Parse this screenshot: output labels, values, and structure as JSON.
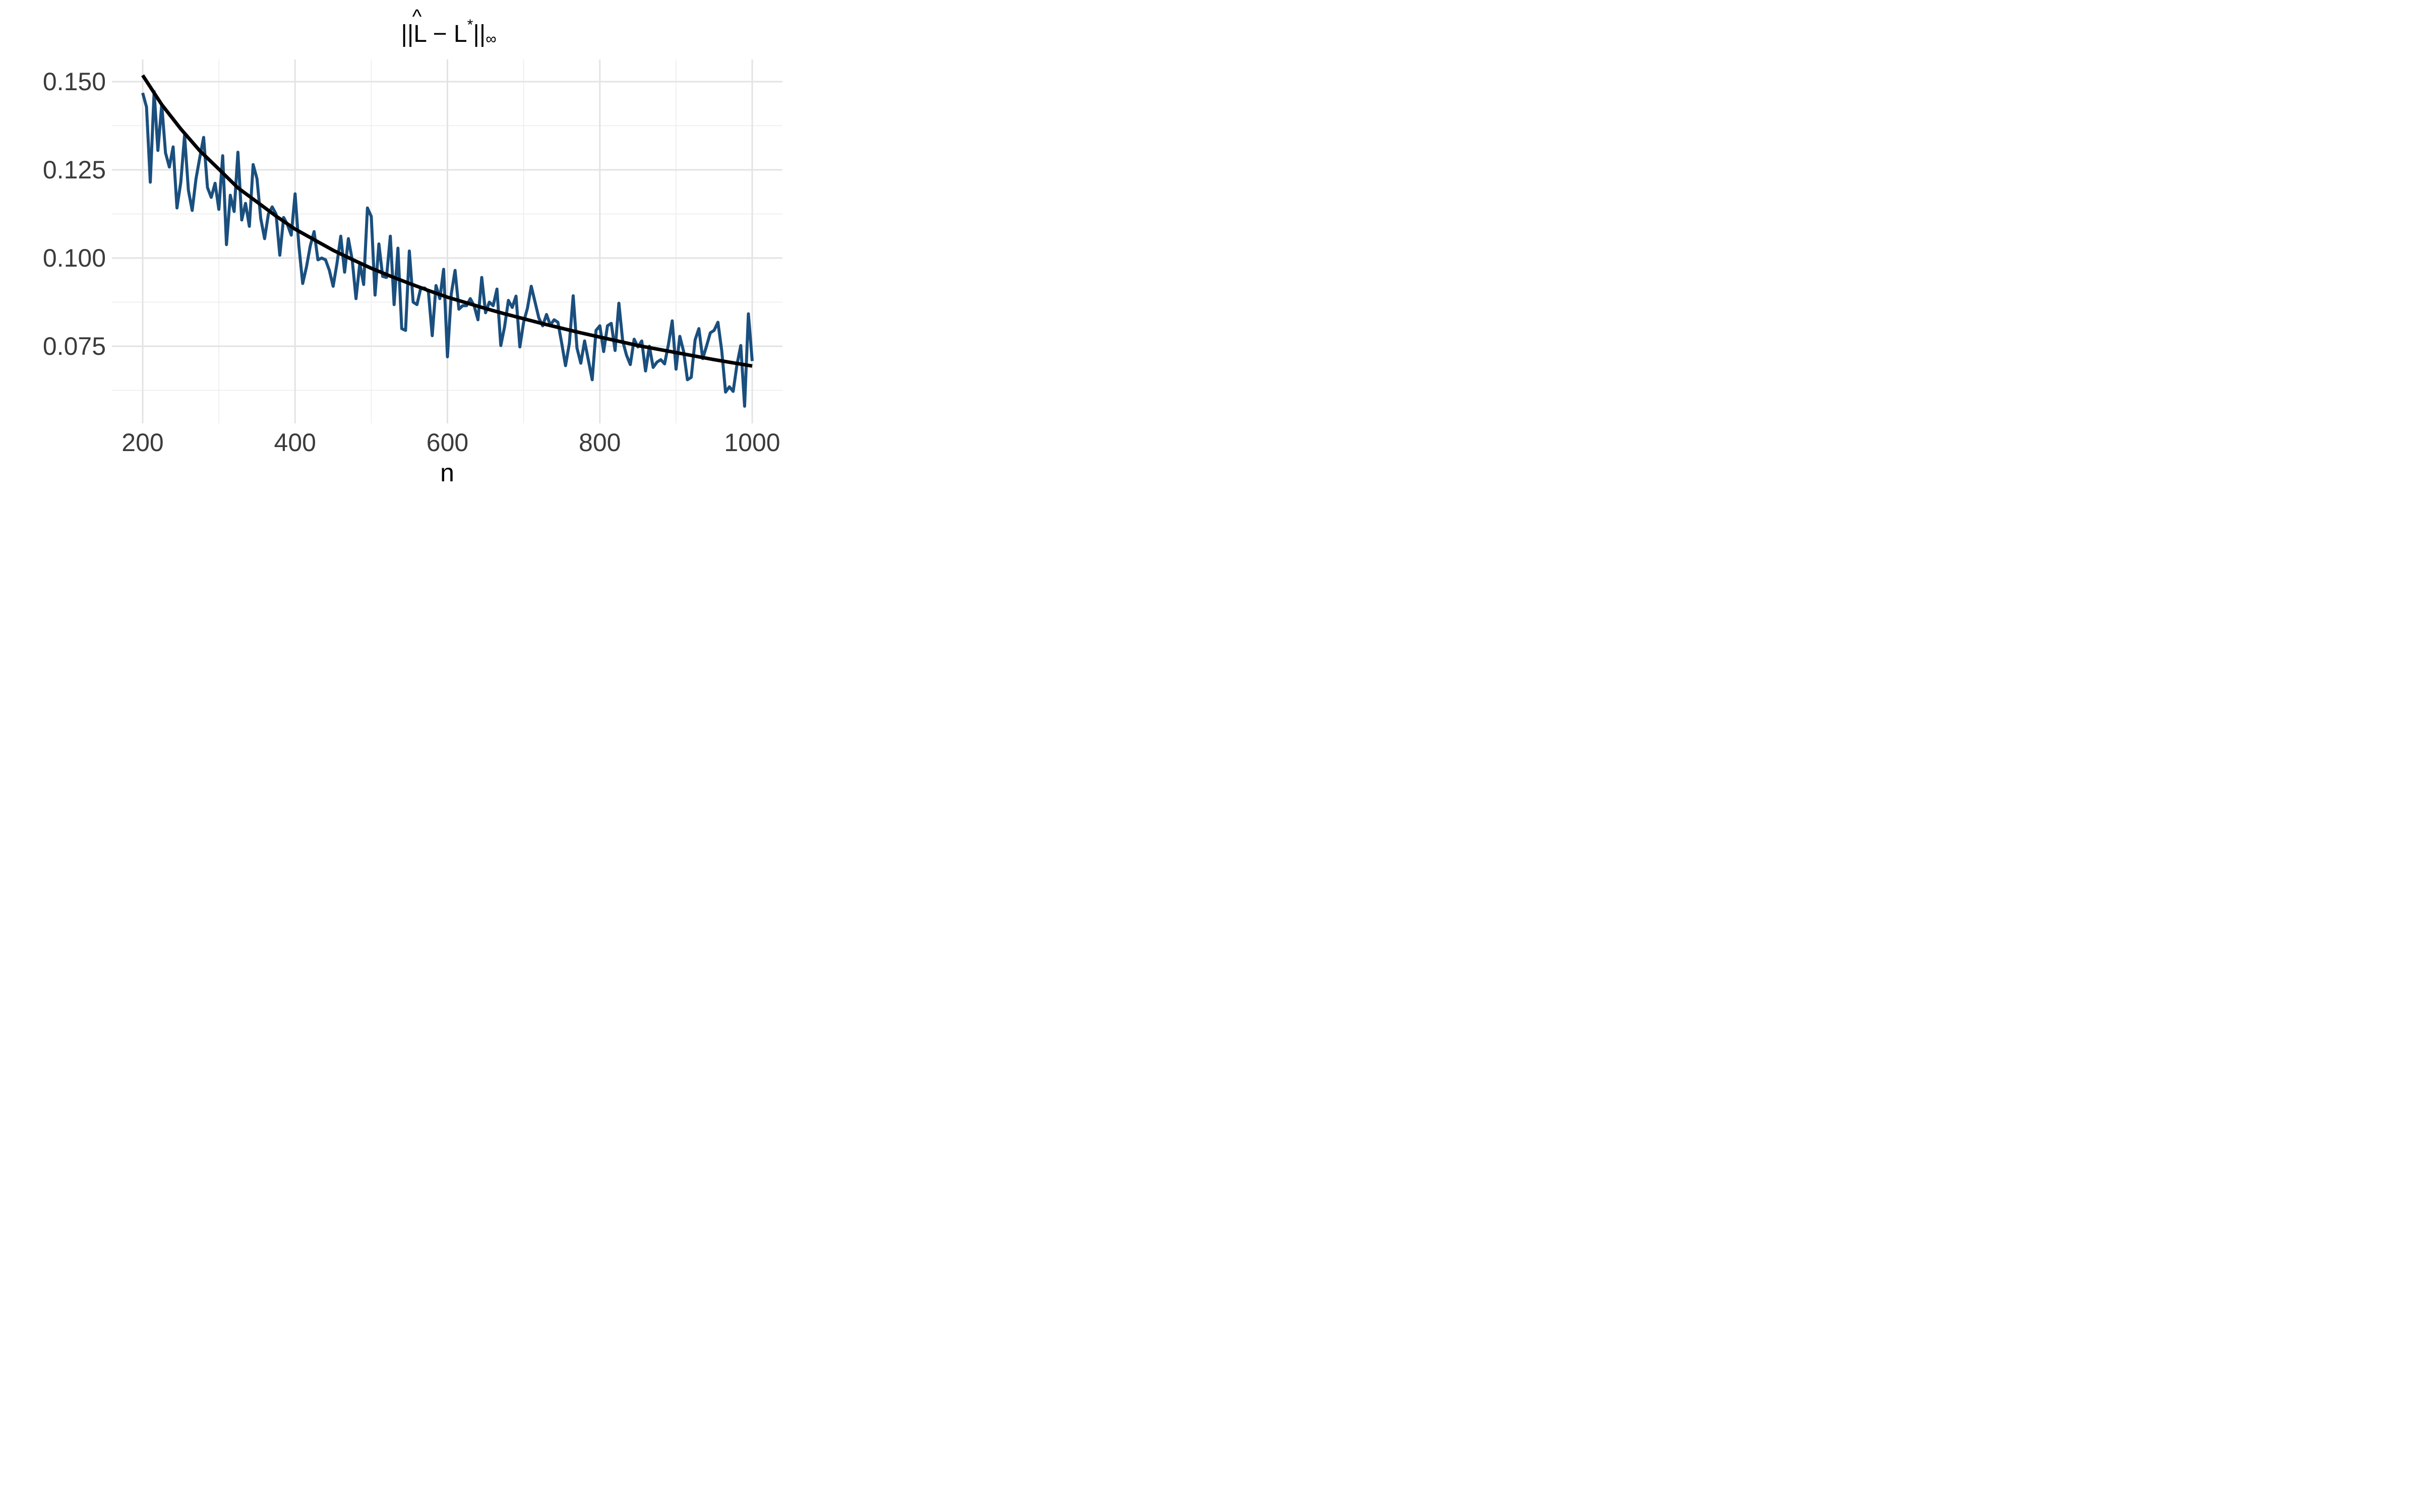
{
  "chart_data": {
    "type": "line",
    "title": {
      "bar_left": "||",
      "hat": "^",
      "L1": "L",
      "minus": " − ",
      "L2": "L",
      "star": "*",
      "bar_right": "||",
      "sub": "∞"
    },
    "xlabel": "n",
    "ylabel": "",
    "xlim": [
      200,
      1000
    ],
    "ylim": [
      0.0595,
      0.1575
    ],
    "x_ticks": [
      200,
      400,
      600,
      800,
      1000
    ],
    "x_tick_labels": [
      "200",
      "400",
      "600",
      "800",
      "1000"
    ],
    "y_ticks": [
      0.075,
      0.1,
      0.125,
      0.15
    ],
    "y_tick_labels": [
      "0.075",
      "0.100",
      "0.125",
      "0.150"
    ],
    "grid": true,
    "legend": "none",
    "series": [
      {
        "color": "#1a4f7e",
        "x": [
          200,
          205,
          210,
          215,
          220,
          225,
          230,
          235,
          240,
          245,
          250,
          255,
          260,
          265,
          270,
          275,
          280,
          285,
          290,
          295,
          300,
          305,
          310,
          315,
          320,
          325,
          330,
          335,
          340,
          345,
          350,
          355,
          360,
          365,
          370,
          375,
          380,
          385,
          390,
          395,
          400,
          405,
          410,
          415,
          420,
          425,
          430,
          435,
          440,
          445,
          450,
          455,
          460,
          465,
          470,
          475,
          480,
          485,
          490,
          495,
          500,
          505,
          510,
          515,
          520,
          525,
          530,
          535,
          540,
          545,
          550,
          555,
          560,
          565,
          570,
          575,
          580,
          585,
          590,
          595,
          600,
          605,
          610,
          615,
          620,
          625,
          630,
          635,
          640,
          645,
          650,
          655,
          660,
          665,
          670,
          675,
          680,
          685,
          690,
          695,
          700,
          705,
          710,
          715,
          720,
          725,
          730,
          735,
          740,
          745,
          750,
          755,
          760,
          765,
          770,
          775,
          780,
          785,
          790,
          795,
          800,
          805,
          810,
          815,
          820,
          825,
          830,
          835,
          840,
          845,
          850,
          855,
          860,
          865,
          870,
          875,
          880,
          885,
          890,
          895,
          900,
          905,
          910,
          915,
          920,
          925,
          930,
          935,
          940,
          945,
          950,
          955,
          960,
          965,
          970,
          975,
          980,
          985,
          990,
          995,
          1000
        ],
        "y": [
          0.1468,
          0.1428,
          0.1215,
          0.1472,
          0.1305,
          0.1435,
          0.1298,
          0.1258,
          0.1315,
          0.1142,
          0.1215,
          0.1348,
          0.1192,
          0.1135,
          0.1225,
          0.1285,
          0.1342,
          0.12,
          0.1172,
          0.1212,
          0.1138,
          0.129,
          0.1038,
          0.1178,
          0.1132,
          0.13,
          0.1108,
          0.1155,
          0.109,
          0.1265,
          0.1225,
          0.1112,
          0.1055,
          0.1125,
          0.1145,
          0.1125,
          0.1008,
          0.1115,
          0.1095,
          0.1065,
          0.1182,
          0.1035,
          0.0928,
          0.0975,
          0.1035,
          0.1075,
          0.0995,
          0.1,
          0.0995,
          0.0965,
          0.092,
          0.0985,
          0.1062,
          0.096,
          0.1055,
          0.0995,
          0.0885,
          0.0985,
          0.0925,
          0.1142,
          0.1118,
          0.0895,
          0.104,
          0.0948,
          0.0945,
          0.1062,
          0.0868,
          0.1028,
          0.08,
          0.0795,
          0.102,
          0.0875,
          0.0868,
          0.0915,
          0.0915,
          0.0905,
          0.078,
          0.0922,
          0.0885,
          0.0968,
          0.072,
          0.0898,
          0.0965,
          0.0855,
          0.0865,
          0.0865,
          0.0885,
          0.0865,
          0.0825,
          0.0945,
          0.0845,
          0.0875,
          0.0865,
          0.0912,
          0.0752,
          0.0805,
          0.088,
          0.086,
          0.0892,
          0.0748,
          0.0818,
          0.0858,
          0.092,
          0.0875,
          0.083,
          0.0808,
          0.084,
          0.081,
          0.0825,
          0.0818,
          0.0758,
          0.0695,
          0.0758,
          0.0893,
          0.0745,
          0.0702,
          0.0765,
          0.071,
          0.0655,
          0.0795,
          0.0808,
          0.0735,
          0.0808,
          0.0815,
          0.0738,
          0.0872,
          0.0765,
          0.0725,
          0.0698,
          0.077,
          0.0748,
          0.0765,
          0.068,
          0.075,
          0.069,
          0.0705,
          0.0712,
          0.07,
          0.0755,
          0.0822,
          0.0685,
          0.0778,
          0.0735,
          0.0655,
          0.0662,
          0.0768,
          0.08,
          0.0715,
          0.075,
          0.0788,
          0.0795,
          0.0818,
          0.0738,
          0.062,
          0.0635,
          0.0622,
          0.0698,
          0.0752,
          0.058,
          0.0842,
          0.0708
        ]
      },
      {
        "color": "#000000",
        "x": [
          200,
          225,
          250,
          275,
          300,
          325,
          350,
          375,
          400,
          425,
          450,
          475,
          500,
          525,
          550,
          575,
          600,
          625,
          650,
          675,
          700,
          725,
          750,
          775,
          800,
          825,
          850,
          875,
          900,
          925,
          950,
          975,
          1000
        ],
        "y": [
          0.1518,
          0.1435,
          0.1366,
          0.1304,
          0.1252,
          0.1199,
          0.1159,
          0.1119,
          0.1082,
          0.1052,
          0.1022,
          0.0996,
          0.0971,
          0.0949,
          0.0928,
          0.0908,
          0.0889,
          0.0873,
          0.0857,
          0.0842,
          0.0828,
          0.0814,
          0.0801,
          0.0788,
          0.0776,
          0.0764,
          0.0752,
          0.0742,
          0.0732,
          0.0722,
          0.0712,
          0.0703,
          0.0694
        ]
      }
    ]
  }
}
